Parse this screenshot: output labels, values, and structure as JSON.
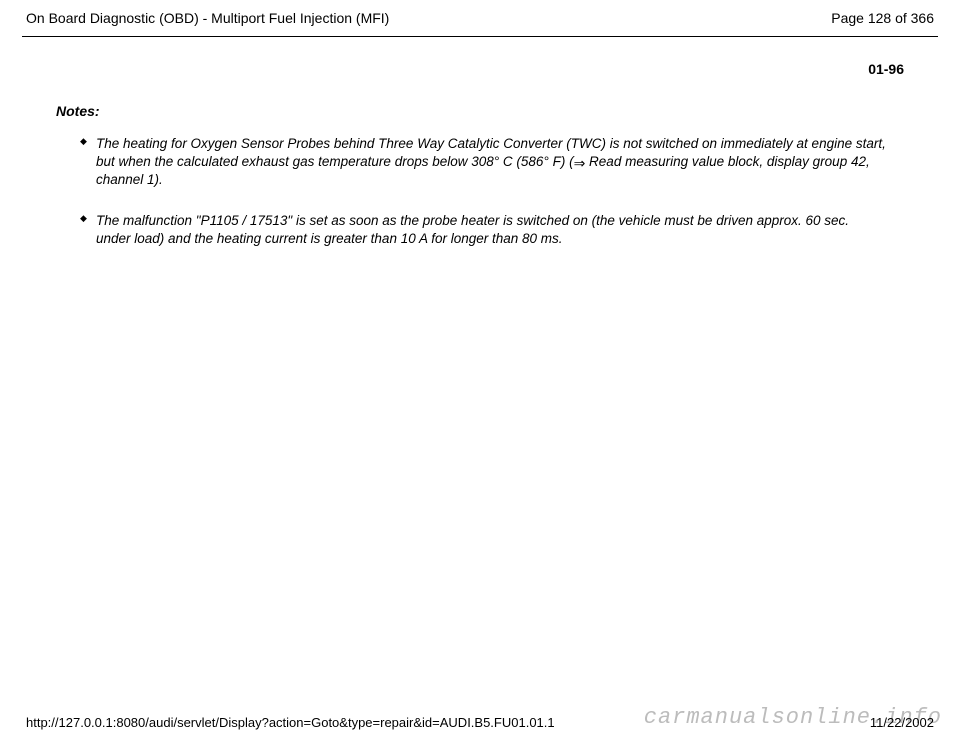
{
  "header": {
    "title": "On Board Diagnostic (OBD) - Multiport Fuel Injection (MFI)",
    "page_indicator": "Page 128 of 366"
  },
  "section_number": "01-96",
  "notes_heading": "Notes:",
  "notes": [
    {
      "pre": "The heating for Oxygen Sensor Probes behind Three Way Catalytic Converter (TWC) is not switched on immediately at engine start, but when the calculated exhaust gas temperature drops below 308° C (586° F) (",
      "arrow": "⇒",
      "post": "  Read measuring value block, display group 42, channel 1)."
    },
    {
      "pre": "The malfunction \"P1105 / 17513\" is set as soon as the probe heater is switched on (the vehicle must be driven approx. 60 sec. under load) and the heating current is greater than 10 A for longer than 80 ms.",
      "arrow": "",
      "post": ""
    }
  ],
  "footer": {
    "url": "http://127.0.0.1:8080/audi/servlet/Display?action=Goto&type=repair&id=AUDI.B5.FU01.01.1",
    "date": "11/22/2002"
  },
  "watermark": "carmanualsonline.info"
}
